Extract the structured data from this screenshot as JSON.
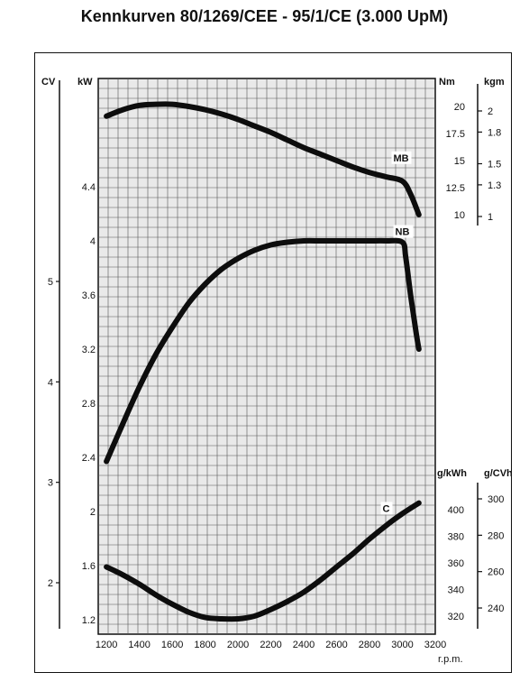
{
  "title": "Kennkurven 80/1269/CEE - 95/1/CE (3.000 UpM)",
  "chart_data": {
    "type": "line",
    "xlabel": "r.p.m.",
    "xlim": [
      1150,
      3200
    ],
    "x_ticks": [
      1200,
      1400,
      1600,
      1800,
      2000,
      2200,
      2400,
      2600,
      2800,
      3000,
      3200
    ],
    "grid": true,
    "axes": {
      "cv": {
        "label": "CV",
        "ticks": [
          2,
          3,
          4,
          5
        ]
      },
      "kw": {
        "label": "kW",
        "ticks": [
          1.2,
          1.6,
          2,
          2.4,
          2.8,
          3.2,
          3.6,
          4,
          4.4
        ]
      },
      "nm": {
        "label": "Nm",
        "ticks": [
          10,
          12.5,
          15,
          17.5,
          20
        ]
      },
      "kgm": {
        "label": "kgm",
        "ticks": [
          1,
          1.3,
          1.5,
          1.8,
          2
        ]
      },
      "gkwh": {
        "label": "g/kWh",
        "ticks": [
          320,
          340,
          360,
          380,
          400
        ]
      },
      "gcvh": {
        "label": "g/CVh",
        "ticks": [
          240,
          260,
          280,
          300
        ]
      }
    },
    "series": [
      {
        "name": "MB",
        "axis": "nm",
        "x": [
          1200,
          1300,
          1400,
          1500,
          1600,
          1700,
          1800,
          1900,
          2000,
          2100,
          2200,
          2300,
          2400,
          2500,
          2600,
          2700,
          2800,
          2900,
          3000,
          3050,
          3100
        ],
        "y": [
          19.1,
          19.7,
          20.1,
          20.2,
          20.2,
          20.0,
          19.7,
          19.3,
          18.8,
          18.2,
          17.6,
          16.9,
          16.2,
          15.6,
          15.0,
          14.4,
          13.9,
          13.5,
          13.1,
          11.9,
          10.0
        ]
      },
      {
        "name": "NB",
        "axis": "kw",
        "x": [
          1200,
          1300,
          1400,
          1500,
          1600,
          1700,
          1800,
          1900,
          2000,
          2100,
          2200,
          2300,
          2400,
          2500,
          2600,
          2700,
          2800,
          2900,
          3000,
          3020,
          3050,
          3080,
          3100
        ],
        "y": [
          2.37,
          2.65,
          2.92,
          3.16,
          3.36,
          3.54,
          3.68,
          3.79,
          3.87,
          3.93,
          3.97,
          3.99,
          4.0,
          4.0,
          4.0,
          4.0,
          4.0,
          4.0,
          3.99,
          3.88,
          3.6,
          3.35,
          3.2
        ]
      },
      {
        "name": "C",
        "axis": "gkwh",
        "x": [
          1200,
          1300,
          1400,
          1500,
          1600,
          1700,
          1800,
          1900,
          2000,
          2100,
          2200,
          2300,
          2400,
          2500,
          2600,
          2700,
          2800,
          2900,
          3000,
          3100
        ],
        "y": [
          357,
          351,
          344,
          336,
          329,
          323,
          319,
          318,
          318,
          320,
          325,
          331,
          338,
          347,
          357,
          367,
          378,
          388,
          397,
          405
        ]
      }
    ]
  }
}
